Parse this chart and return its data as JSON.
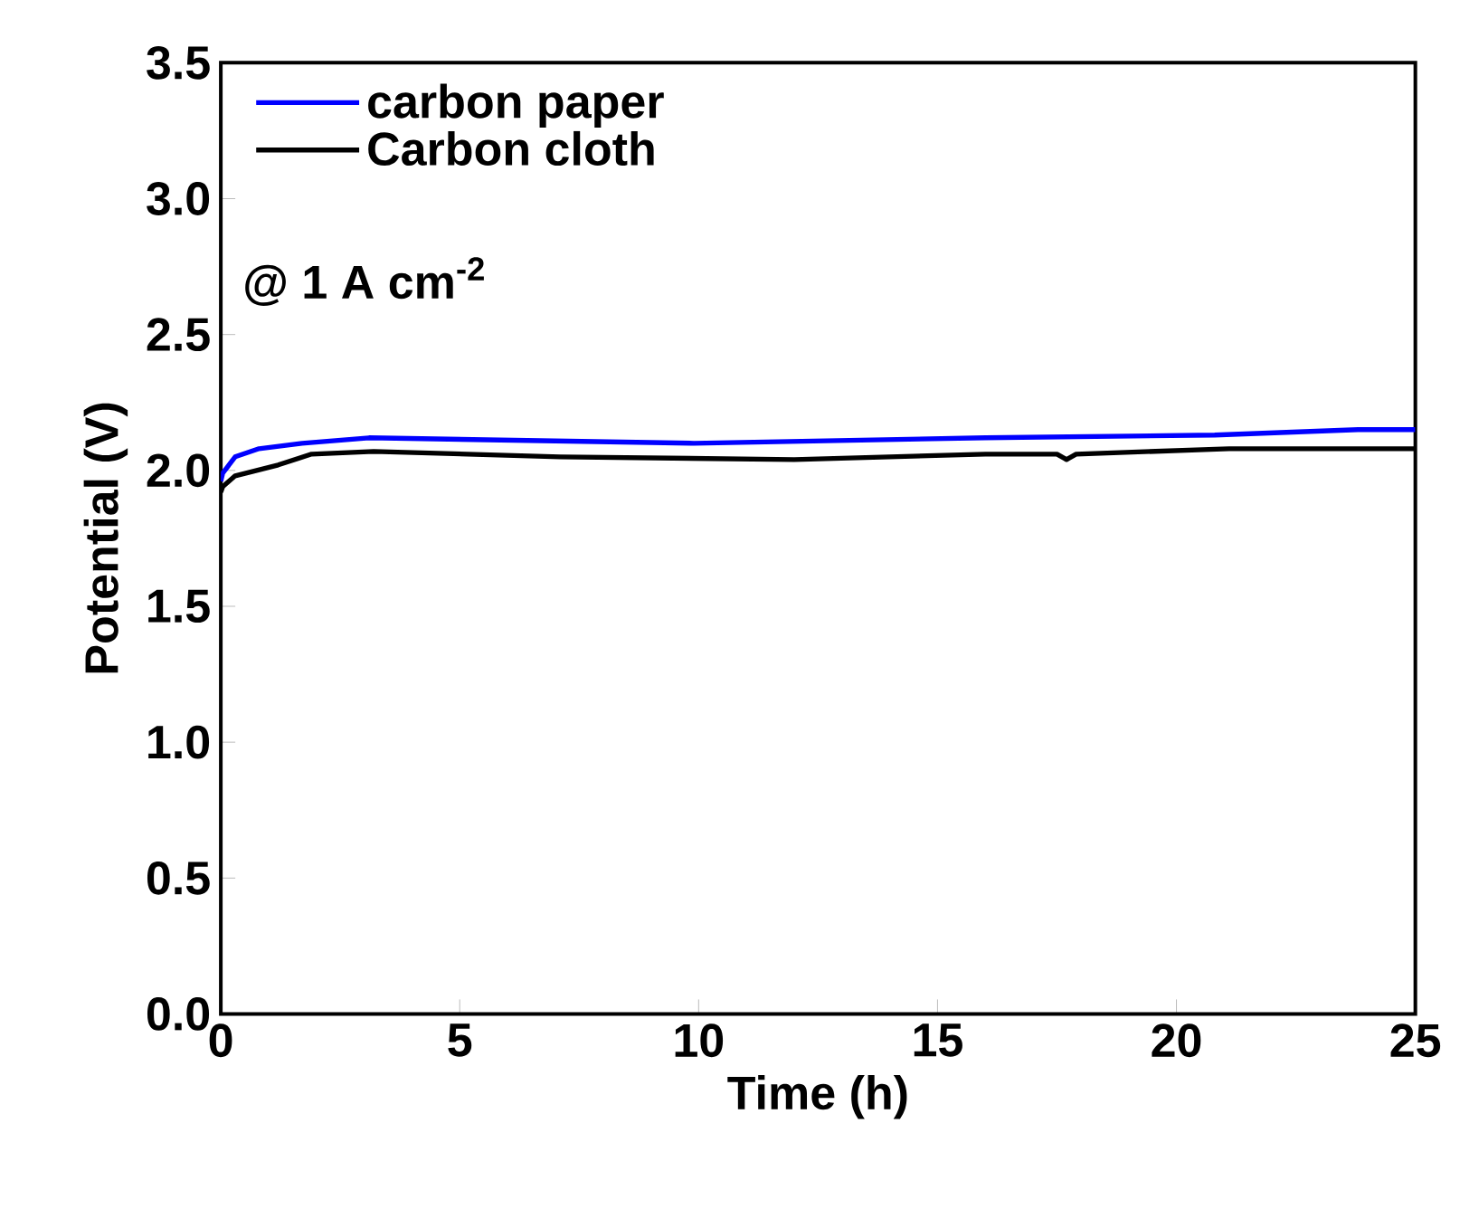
{
  "chart_data": {
    "type": "line",
    "xlabel": "Time (h)",
    "ylabel": "Potential (V)",
    "annotations": [
      "@ 1 A cm$^{-2}$"
    ],
    "xlim": [
      0,
      25
    ],
    "xticks": [
      0,
      5,
      10,
      15,
      20,
      25
    ],
    "ylim": [
      0,
      3.5
    ],
    "yticks": [
      {
        "value": 0,
        "label": "0.0"
      },
      {
        "value": 0.5,
        "label": "0.5"
      },
      {
        "value": 1,
        "label": "1.0"
      },
      {
        "value": 1.5,
        "label": "1.5"
      },
      {
        "value": 2,
        "label": "2.0"
      },
      {
        "value": 2.5,
        "label": "2.5"
      },
      {
        "value": 3,
        "label": "3.0"
      },
      {
        "value": 3.5,
        "label": "3.5"
      }
    ],
    "grid": false,
    "legend": "top left",
    "marker": "none",
    "line_style": "solid",
    "series": [
      {
        "name": "carbon paper",
        "color": "#0000ff",
        "x": [
          0,
          0.04,
          0.3,
          0.8,
          1.7,
          3.1,
          9.9,
          16.0,
          20.8,
          23.8,
          25
        ],
        "values": [
          1.96,
          1.99,
          2.05,
          2.08,
          2.1,
          2.12,
          2.1,
          2.12,
          2.13,
          2.15,
          2.15
        ]
      },
      {
        "name": "Carbon cloth",
        "color": "#000000",
        "x": [
          0,
          0.04,
          0.3,
          1.2,
          1.9,
          3.2,
          7.1,
          12.0,
          16.0,
          17.5,
          17.7,
          17.9,
          21.1,
          25
        ],
        "values": [
          1.92,
          1.94,
          1.98,
          2.02,
          2.06,
          2.07,
          2.05,
          2.04,
          2.06,
          2.06,
          2.04,
          2.06,
          2.08,
          2.08
        ]
      }
    ]
  }
}
